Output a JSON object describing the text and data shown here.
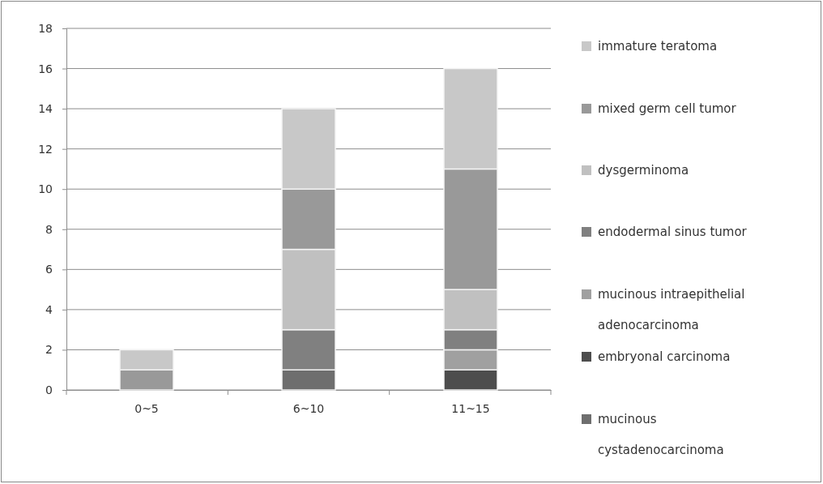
{
  "chart_data": {
    "type": "bar",
    "stacked": true,
    "categories": [
      "0~5",
      "6~10",
      "11~15"
    ],
    "ylim": [
      0,
      18
    ],
    "yticks": [
      0,
      2,
      4,
      6,
      8,
      10,
      12,
      14,
      16,
      18
    ],
    "grid": "y",
    "legend": "right",
    "series": [
      {
        "name": "mucinous cystadenocarcinoma",
        "color": "#6e6e6e",
        "values": [
          0,
          1,
          0
        ]
      },
      {
        "name": "embryonal carcinoma",
        "color": "#4d4d4d",
        "values": [
          0,
          0,
          1
        ]
      },
      {
        "name": "mucinous intraepithelial adenocarcinoma",
        "color": "#a0a0a0",
        "values": [
          0,
          0,
          1
        ]
      },
      {
        "name": "endodermal sinus tumor",
        "color": "#808080",
        "values": [
          0,
          2,
          1
        ]
      },
      {
        "name": "dysgerminoma",
        "color": "#c0c0c0",
        "values": [
          0,
          4,
          2
        ]
      },
      {
        "name": "mixed germ cell tumor",
        "color": "#999999",
        "values": [
          1,
          3,
          6
        ]
      },
      {
        "name": "immature teratoma",
        "color": "#c8c8c8",
        "values": [
          1,
          4,
          5
        ]
      }
    ]
  }
}
